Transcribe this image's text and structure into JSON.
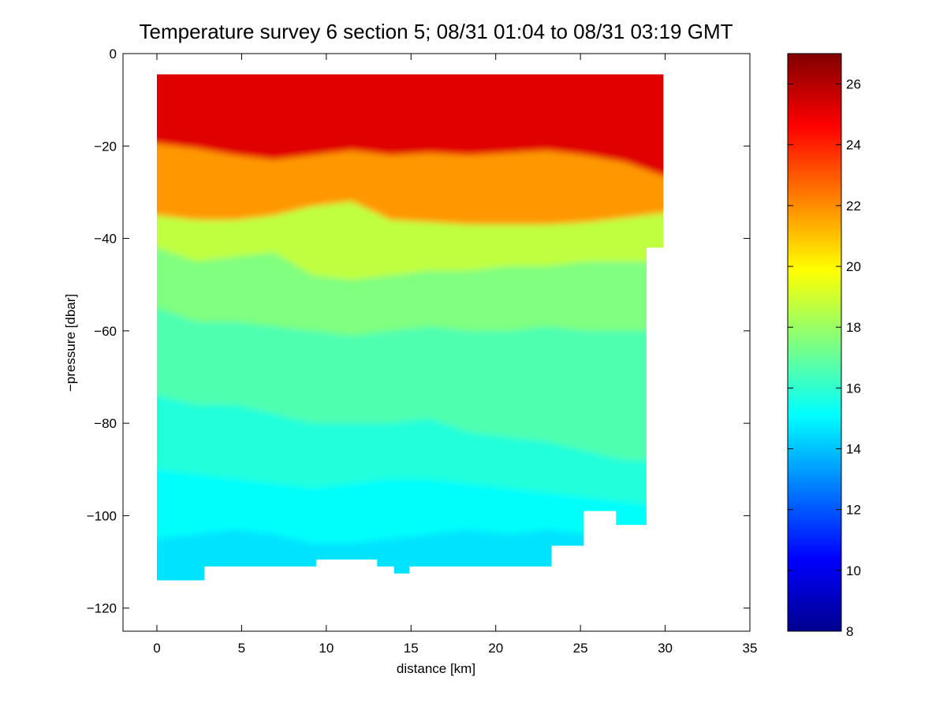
{
  "chart_data": {
    "type": "heatmap",
    "title": "Temperature survey 6 section 5; 08/31 01:04 to 08/31 03:19 GMT",
    "xlabel": "distance [km]",
    "ylabel": "−pressure [dbar]",
    "xlim": [
      -2,
      35
    ],
    "ylim": [
      -125,
      0
    ],
    "x_ticks": [
      "0",
      "5",
      "10",
      "15",
      "20",
      "25",
      "30",
      "35"
    ],
    "x_tick_values": [
      0,
      5,
      10,
      15,
      20,
      25,
      30,
      35
    ],
    "y_ticks": [
      "0",
      "−20",
      "−40",
      "−60",
      "−80",
      "−100",
      "−120"
    ],
    "y_tick_values": [
      0,
      -20,
      -40,
      -60,
      -80,
      -100,
      -120
    ],
    "grid": false,
    "colormap": "jet",
    "colorbar": {
      "clim": [
        8,
        27
      ],
      "ticks": [
        "8",
        "10",
        "12",
        "14",
        "16",
        "18",
        "20",
        "22",
        "24",
        "26"
      ],
      "tick_values": [
        8,
        10,
        12,
        14,
        16,
        18,
        20,
        22,
        24,
        26
      ]
    },
    "top_depth": -4.5,
    "isotherm_depths": {
      "24": [
        -19.5,
        -20.5,
        -22,
        -23,
        -22,
        -21,
        -22,
        -21.5,
        -22,
        -21.5,
        -21,
        -22,
        -23.5,
        -26.5
      ],
      "20": [
        -35,
        -36,
        -36,
        -35,
        -33,
        -32,
        -36,
        -36.5,
        -37,
        -37,
        -37,
        -36.5,
        -35.5,
        -34.5
      ],
      "18": [
        -42,
        -45,
        -44,
        -43,
        -48,
        -49,
        -48,
        -47,
        -47,
        -46,
        -46,
        -45,
        -45,
        -45
      ],
      "17": [
        -55,
        -58,
        -58,
        -59,
        -60,
        -61,
        -60,
        -59,
        -60,
        -60,
        -59,
        -60,
        -60,
        -60
      ],
      "16": [
        -74,
        -76,
        -76,
        -78,
        -80,
        -80,
        -80,
        -79,
        -82,
        -83,
        -84,
        -86,
        -88,
        -88
      ],
      "15.5": [
        -90,
        -91,
        -92,
        -93,
        -94,
        -93,
        -92,
        -92,
        -93,
        -94,
        -95,
        -96,
        -97,
        -98
      ],
      "15": [
        -105,
        -104,
        -103,
        -104,
        -106,
        -106,
        -105,
        -104,
        -103,
        -104,
        -103,
        -104,
        -103,
        -102
      ]
    },
    "isotherm_x": [
      0,
      2.3,
      4.6,
      6.9,
      9.2,
      11.5,
      13.8,
      16.1,
      18.4,
      20.7,
      23,
      25.3,
      27.6,
      29.9
    ],
    "bottom_boundary": [
      [
        0,
        -114
      ],
      [
        2.8,
        -114
      ],
      [
        2.8,
        -111
      ],
      [
        9.4,
        -111
      ],
      [
        9.4,
        -109.5
      ],
      [
        13,
        -109.5
      ],
      [
        13,
        -111
      ],
      [
        14,
        -111
      ],
      [
        14,
        -112.5
      ],
      [
        14.9,
        -112.5
      ],
      [
        14.9,
        -111
      ],
      [
        23.3,
        -111
      ],
      [
        23.3,
        -106.5
      ],
      [
        25.2,
        -106.5
      ],
      [
        25.2,
        -99
      ],
      [
        27.1,
        -99
      ],
      [
        27.1,
        -102
      ],
      [
        28.9,
        -102
      ],
      [
        28.9,
        -42
      ],
      [
        29.9,
        -42
      ],
      [
        29.9,
        -4.5
      ],
      [
        0,
        -4.5
      ]
    ]
  }
}
